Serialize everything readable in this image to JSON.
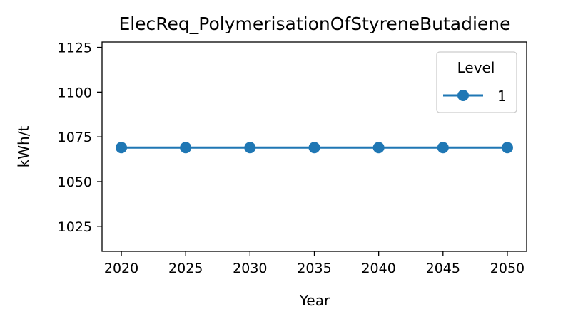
{
  "chart_data": {
    "type": "line",
    "title": "ElecReq_PolymerisationOfStyreneButadiene",
    "xlabel": "Year",
    "ylabel": "kWh/t",
    "x": [
      2020,
      2025,
      2030,
      2035,
      2040,
      2045,
      2050
    ],
    "xticks": [
      "2020",
      "2025",
      "2030",
      "2035",
      "2040",
      "2045",
      "2050"
    ],
    "xlim": [
      2018.5,
      2051.5
    ],
    "yticks": [
      "1025",
      "1050",
      "1075",
      "1100",
      "1125"
    ],
    "ylim": [
      1011,
      1128
    ],
    "grid": false,
    "legend": {
      "title": "Level",
      "placement": "upper-right"
    },
    "series": [
      {
        "name": "1",
        "color": "#1f77b4",
        "marker": "circle",
        "values": [
          1069,
          1069,
          1069,
          1069,
          1069,
          1069,
          1069
        ]
      }
    ]
  }
}
